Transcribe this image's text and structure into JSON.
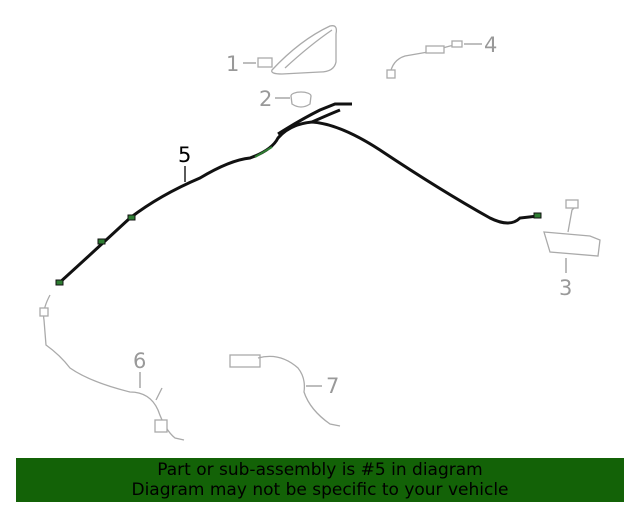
{
  "diagram": {
    "callouts": [
      "1",
      "2",
      "3",
      "4",
      "5",
      "6",
      "7"
    ],
    "highlighted_part": "5",
    "colors": {
      "highlight": "#000000",
      "other_parts": "#999999",
      "connector": "#2e7d32",
      "banner": "#136207"
    }
  },
  "banner": {
    "line1": "Part or sub-assembly is #5 in diagram",
    "line2": "Diagram may not be specific to your vehicle"
  }
}
